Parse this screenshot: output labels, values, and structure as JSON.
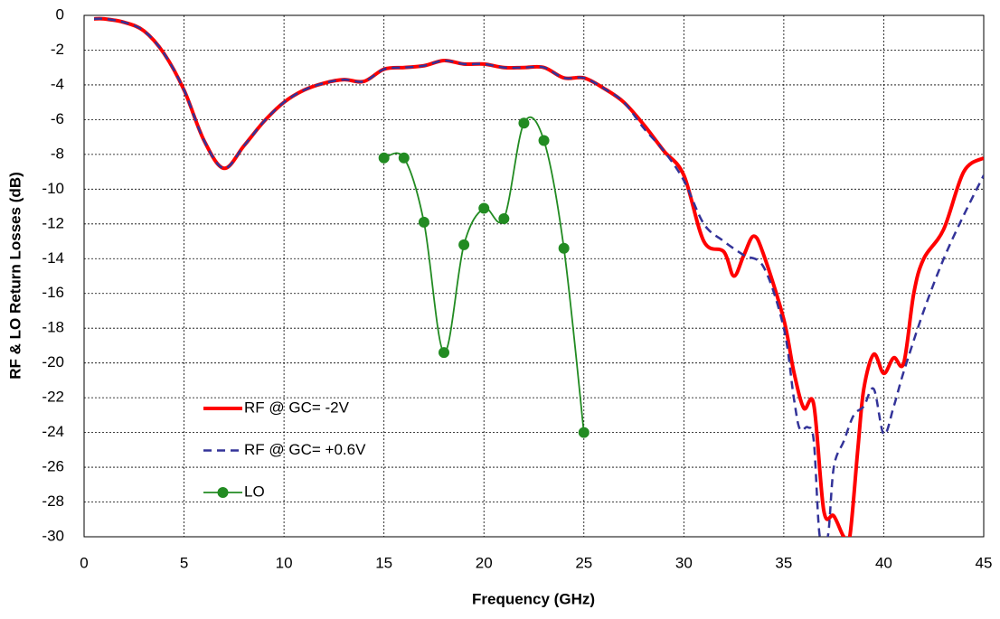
{
  "chart_data": {
    "type": "line",
    "x_label": "Frequency (GHz)",
    "y_label": "RF & LO Return Losses (dB)",
    "xlim": [
      0,
      45
    ],
    "xticks": [
      0,
      5,
      10,
      15,
      20,
      25,
      30,
      35,
      40,
      45
    ],
    "ylim": [
      -30,
      0
    ],
    "yticks": [
      0,
      -2,
      -4,
      -6,
      -8,
      -10,
      -12,
      -14,
      -16,
      -18,
      -20,
      -22,
      -24,
      -26,
      -28,
      -30
    ],
    "grid": true,
    "legend": "lower left",
    "series": [
      {
        "name": "RF @ GC= -2V",
        "color": "#ff0000",
        "style": "solid",
        "x": [
          0.5,
          1,
          2,
          3,
          4,
          5,
          6,
          7,
          8,
          9,
          10,
          11,
          12,
          13,
          14,
          15,
          16,
          17,
          18,
          19,
          20,
          21,
          22,
          23,
          24,
          25,
          26,
          27,
          28,
          29,
          30,
          31,
          32,
          32.5,
          33,
          33.5,
          34,
          35,
          35.5,
          36,
          36.5,
          37,
          37.5,
          38,
          38.3,
          38.7,
          39,
          39.5,
          40,
          40.5,
          41,
          41.5,
          42,
          43,
          44,
          45
        ],
        "values": [
          -0.2,
          -0.2,
          -0.4,
          -0.9,
          -2.2,
          -4.3,
          -7.2,
          -8.8,
          -7.5,
          -6.1,
          -5.0,
          -4.3,
          -3.9,
          -3.7,
          -3.8,
          -3.1,
          -3.0,
          -2.9,
          -2.6,
          -2.8,
          -2.8,
          -3.0,
          -3.0,
          -3.0,
          -3.6,
          -3.6,
          -4.2,
          -5.0,
          -6.3,
          -7.8,
          -9.2,
          -13.0,
          -13.6,
          -15.0,
          -13.8,
          -12.7,
          -13.8,
          -17.5,
          -20.5,
          -22.6,
          -22.4,
          -28.5,
          -28.8,
          -30,
          -30,
          -25,
          -21.5,
          -19.5,
          -20.6,
          -19.7,
          -20,
          -16,
          -14,
          -12.3,
          -9,
          -8.2
        ]
      },
      {
        "name": "RF @ GC= +0.6V",
        "color": "#333399",
        "style": "dashed",
        "x": [
          0.5,
          1,
          2,
          3,
          4,
          5,
          6,
          7,
          8,
          9,
          10,
          11,
          12,
          13,
          14,
          15,
          16,
          17,
          18,
          19,
          20,
          21,
          22,
          23,
          24,
          25,
          26,
          27,
          28,
          29,
          30,
          31,
          32,
          33,
          34,
          35,
          35.5,
          35.8,
          36.2,
          36.5,
          36.8,
          37.2,
          37.5,
          38,
          38.5,
          39,
          39.5,
          40,
          40.5,
          41,
          42,
          43,
          44,
          45
        ],
        "values": [
          -0.2,
          -0.2,
          -0.4,
          -0.9,
          -2.2,
          -4.3,
          -7.2,
          -8.8,
          -7.5,
          -6.1,
          -5.0,
          -4.3,
          -3.9,
          -3.7,
          -3.8,
          -3.1,
          -3.0,
          -2.9,
          -2.6,
          -2.8,
          -2.8,
          -3.0,
          -3.0,
          -3.0,
          -3.6,
          -3.6,
          -4.2,
          -5.0,
          -6.5,
          -7.8,
          -9.5,
          -12.0,
          -13.0,
          -13.8,
          -14.5,
          -18.0,
          -22.0,
          -23.8,
          -23.7,
          -24.5,
          -30,
          -30,
          -26,
          -24.5,
          -23,
          -22.5,
          -21.5,
          -24.1,
          -22.5,
          -20.5,
          -17,
          -14,
          -11.5,
          -9.2
        ]
      },
      {
        "name": "LO",
        "color": "#228b22",
        "style": "marker",
        "x": [
          15,
          16,
          17,
          18,
          19,
          20,
          21,
          22,
          23,
          24,
          25
        ],
        "values": [
          -8.2,
          -8.2,
          -11.9,
          -19.4,
          -13.2,
          -11.1,
          -11.7,
          -6.2,
          -7.2,
          -13.4,
          -24.0
        ]
      }
    ]
  }
}
